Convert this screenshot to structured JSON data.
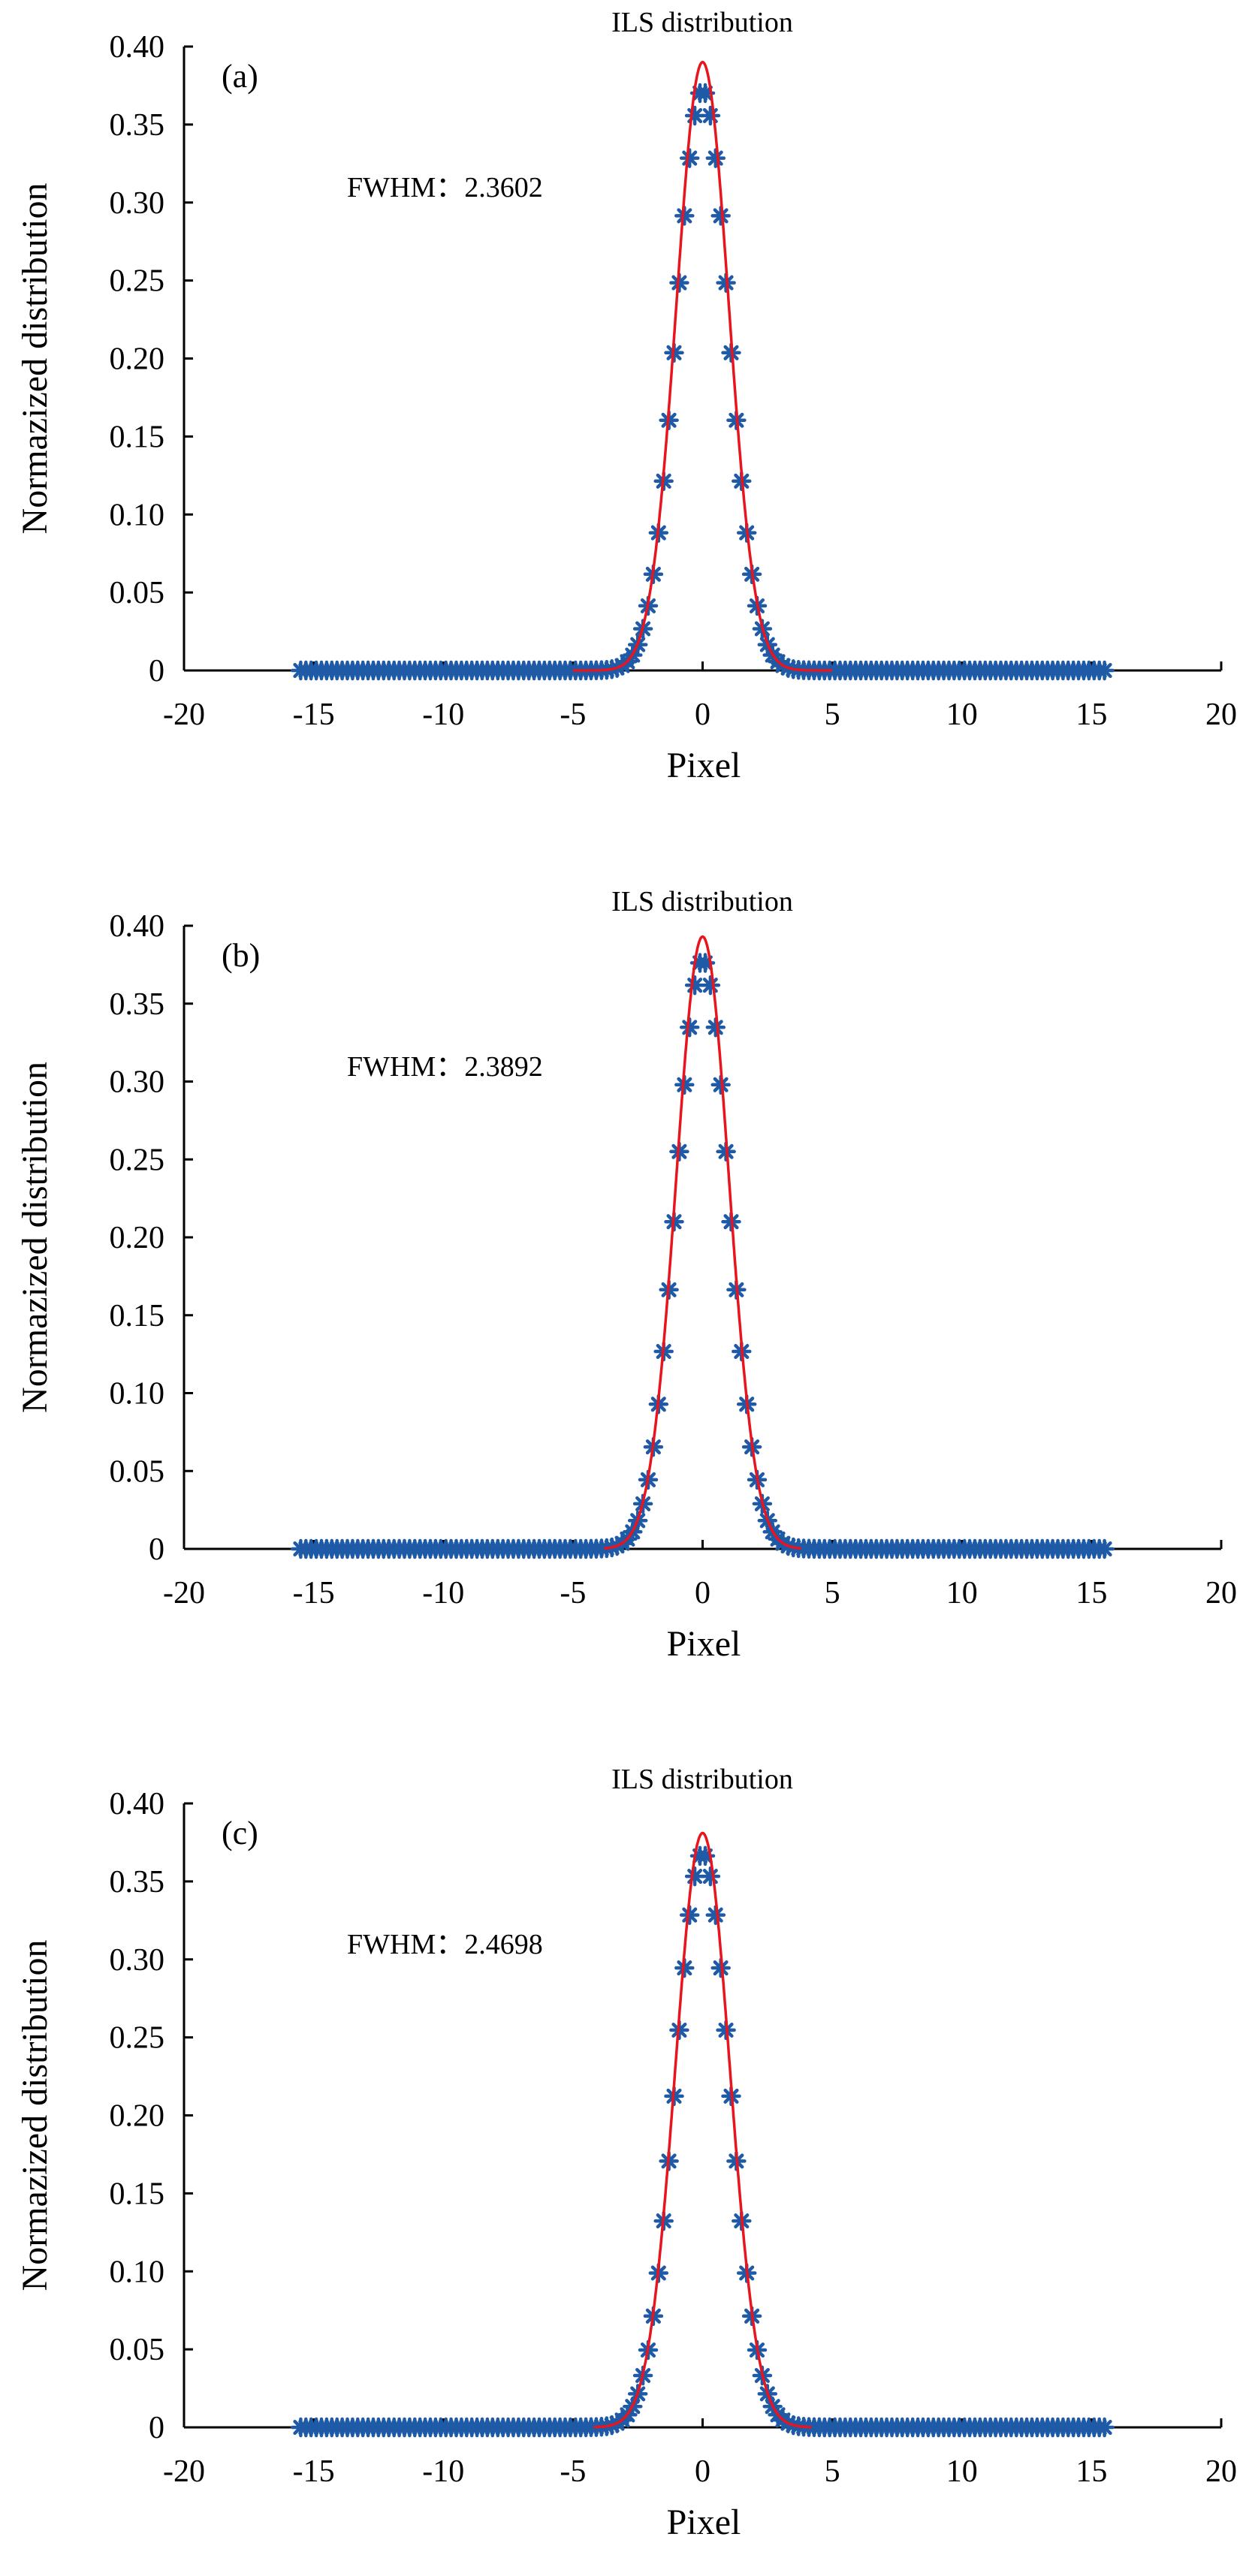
{
  "figure": {
    "colors": {
      "marker": "#1f5aa6",
      "fit": "#e8141e",
      "axis": "#000000"
    }
  },
  "chart_data": [
    {
      "type": "scatter",
      "panel_label": "(a)",
      "title": "ILS distribution",
      "xlabel": "Pixel",
      "ylabel": "Normazized distribution",
      "annotation": "FWHM：2.3602",
      "xlim": [
        -20,
        20
      ],
      "ylim": [
        0,
        0.4
      ],
      "xticks": [
        -20,
        -15,
        -10,
        -5,
        0,
        5,
        10,
        15,
        20
      ],
      "xtick_labels": [
        "-20",
        "-15",
        "-10",
        "-5",
        "0",
        "5",
        "10",
        "15",
        "20"
      ],
      "yticks": [
        0,
        0.05,
        0.1,
        0.15,
        0.2,
        0.25,
        0.3,
        0.35,
        0.4
      ],
      "ytick_labels": [
        "0",
        "0.05",
        "0.10",
        "0.15",
        "0.20",
        "0.25",
        "0.30",
        "0.35",
        "0.40"
      ],
      "grid": false,
      "series": [
        {
          "kind": "markers",
          "marker": "asterisk",
          "peak": 0.372,
          "fwhm": 2.3602,
          "x_range": [
            -15.5,
            15.5
          ],
          "step": 0.2
        },
        {
          "kind": "line",
          "peak": 0.39,
          "fwhm": 2.3602,
          "x_range": [
            -5,
            5
          ]
        }
      ]
    },
    {
      "type": "scatter",
      "panel_label": "(b)",
      "title": "ILS distribution",
      "xlabel": "Pixel",
      "ylabel": "Normazized distribution",
      "annotation": "FWHM：2.3892",
      "xlim": [
        -20,
        20
      ],
      "ylim": [
        0,
        0.4
      ],
      "xticks": [
        -20,
        -15,
        -10,
        -5,
        0,
        5,
        10,
        15,
        20
      ],
      "xtick_labels": [
        "-20",
        "-15",
        "-10",
        "-5",
        "0",
        "5",
        "10",
        "15",
        "20"
      ],
      "yticks": [
        0,
        0.05,
        0.1,
        0.15,
        0.2,
        0.25,
        0.3,
        0.35,
        0.4
      ],
      "ytick_labels": [
        "0",
        "0.05",
        "0.10",
        "0.15",
        "0.20",
        "0.25",
        "0.30",
        "0.35",
        "0.40"
      ],
      "grid": false,
      "series": [
        {
          "kind": "markers",
          "marker": "asterisk",
          "peak": 0.378,
          "fwhm": 2.3892,
          "x_range": [
            -15.5,
            15.5
          ],
          "step": 0.2
        },
        {
          "kind": "line",
          "peak": 0.393,
          "fwhm": 2.3892,
          "x_range": [
            -3.8,
            3.8
          ]
        }
      ]
    },
    {
      "type": "scatter",
      "panel_label": "(c)",
      "title": "ILS distribution",
      "xlabel": "Pixel",
      "ylabel": "Normazized distribution",
      "annotation": "FWHM：2.4698",
      "xlim": [
        -20,
        20
      ],
      "ylim": [
        0,
        0.4
      ],
      "xticks": [
        -20,
        -15,
        -10,
        -5,
        0,
        5,
        10,
        15,
        20
      ],
      "xtick_labels": [
        "-20",
        "-15",
        "-10",
        "-5",
        "0",
        "5",
        "10",
        "15",
        "20"
      ],
      "yticks": [
        0,
        0.05,
        0.1,
        0.15,
        0.2,
        0.25,
        0.3,
        0.35,
        0.4
      ],
      "ytick_labels": [
        "0",
        "0.05",
        "0.10",
        "0.15",
        "0.20",
        "0.25",
        "0.30",
        "0.35",
        "0.40"
      ],
      "grid": false,
      "series": [
        {
          "kind": "markers",
          "marker": "asterisk",
          "peak": 0.368,
          "fwhm": 2.4698,
          "x_range": [
            -15.5,
            15.5
          ],
          "step": 0.2
        },
        {
          "kind": "line",
          "peak": 0.381,
          "fwhm": 2.4698,
          "x_range": [
            -4.2,
            4.2
          ]
        }
      ]
    }
  ]
}
